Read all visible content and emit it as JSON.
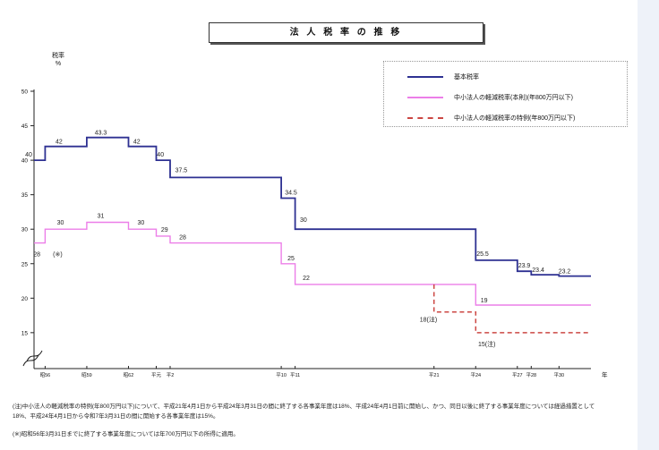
{
  "page": {
    "title": "法 人 税 率 の 推 移"
  },
  "chart_data": {
    "type": "line",
    "subtype": "step-after",
    "title": "法人税率の推移",
    "ylabel": "税率",
    "ylabel_unit": "%",
    "xlabel": "年",
    "grid": false,
    "legend_position": "top-right",
    "y_axis_break": true,
    "ylim": [
      13.5,
      50
    ],
    "yticks": [
      50,
      45,
      40,
      35,
      30,
      25,
      20,
      15
    ],
    "xlim": [
      1980.2,
      2020.3
    ],
    "xticks": [
      {
        "year": 1981,
        "label": "昭56"
      },
      {
        "year": 1984,
        "label": "昭59"
      },
      {
        "year": 1987,
        "label": "昭62"
      },
      {
        "year": 1989,
        "label": "平元"
      },
      {
        "year": 1990,
        "label": "平2"
      },
      {
        "year": 1998,
        "label": "平10"
      },
      {
        "year": 1999,
        "label": "平11"
      },
      {
        "year": 2009,
        "label": "平21"
      },
      {
        "year": 2012,
        "label": "平24"
      },
      {
        "year": 2015,
        "label": "平27"
      },
      {
        "year": 2016,
        "label": "平28"
      },
      {
        "year": 2018,
        "label": "平30"
      }
    ],
    "series": [
      {
        "name": "基本税率",
        "color": "#2e3192",
        "dash": false,
        "width": 1.8,
        "end_year": 2020.3,
        "points": [
          [
            1980.2,
            40
          ],
          [
            1981,
            42
          ],
          [
            1984,
            43.3
          ],
          [
            1987,
            42
          ],
          [
            1989,
            40
          ],
          [
            1990,
            37.5
          ],
          [
            1998,
            34.5
          ],
          [
            1999,
            30
          ],
          [
            2012,
            25.5
          ],
          [
            2015,
            23.9
          ],
          [
            2016,
            23.4
          ],
          [
            2018,
            23.2
          ]
        ],
        "labels": [
          {
            "t": "40",
            "year": 1980.2,
            "v": 40,
            "dx": -6,
            "dy": -4
          },
          {
            "t": "42",
            "year": 1982.0,
            "v": 42,
            "dy": -3
          },
          {
            "t": "43.3",
            "year": 1985.0,
            "v": 43.3,
            "dy": -3
          },
          {
            "t": "42",
            "year": 1987.6,
            "v": 42,
            "dy": -3
          },
          {
            "t": "40",
            "year": 1989.3,
            "v": 40,
            "dy": -4
          },
          {
            "t": "37.5",
            "year": 1990.8,
            "v": 37.5,
            "dy": -6
          },
          {
            "t": "34.5",
            "year": 1998.7,
            "v": 34.5,
            "dy": -4
          },
          {
            "t": "30",
            "year": 1999.6,
            "v": 30,
            "dy": -8
          },
          {
            "t": "25.5",
            "year": 2012.5,
            "v": 25.5,
            "dy": -5
          },
          {
            "t": "23.9",
            "year": 2015.5,
            "v": 23.9,
            "dy": -4
          },
          {
            "t": "23.4",
            "year": 2016.5,
            "v": 23.4,
            "dy": -3
          },
          {
            "t": "23.2",
            "year": 2018.4,
            "v": 23.2,
            "dy": -3
          }
        ]
      },
      {
        "name": "中小法人の軽減税率(本則)(年800万円以下)",
        "color": "#ec7ee8",
        "dash": false,
        "width": 1.4,
        "end_year": 2020.3,
        "points": [
          [
            1980.2,
            28
          ],
          [
            1981,
            30
          ],
          [
            1984,
            31
          ],
          [
            1987,
            30
          ],
          [
            1989,
            29
          ],
          [
            1990,
            28
          ],
          [
            1998,
            25
          ],
          [
            1999,
            22
          ],
          [
            2012,
            19
          ]
        ],
        "labels": [
          {
            "t": "28",
            "year": 1980.4,
            "v": 28,
            "dy": 15
          },
          {
            "t": "(※)",
            "year": 1981.9,
            "v": 28,
            "dy": 15
          },
          {
            "t": "30",
            "year": 1982.1,
            "v": 30,
            "dy": -5
          },
          {
            "t": "31",
            "year": 1985.0,
            "v": 31,
            "dy": -5
          },
          {
            "t": "30",
            "year": 1987.9,
            "v": 30,
            "dy": -5
          },
          {
            "t": "29",
            "year": 1989.6,
            "v": 29,
            "dy": -5
          },
          {
            "t": "28",
            "year": 1990.9,
            "v": 28,
            "dy": -4
          },
          {
            "t": "25",
            "year": 1998.7,
            "v": 25,
            "dy": -4
          },
          {
            "t": "22",
            "year": 1999.8,
            "v": 22,
            "dy": -5
          },
          {
            "t": "19",
            "year": 2012.6,
            "v": 19,
            "dy": -3
          }
        ]
      },
      {
        "name": "中小法人の軽減税率の特例(年800万円以下)",
        "color": "#cc4743",
        "dash": true,
        "width": 1.5,
        "end_year": 2020.3,
        "points": [
          [
            2009,
            22
          ],
          [
            2009,
            18
          ],
          [
            2012,
            15
          ]
        ],
        "labels": [
          {
            "t": "18(注)",
            "year": 2008.6,
            "v": 18,
            "dy": 11
          },
          {
            "t": "15(注)",
            "year": 2012.8,
            "v": 15,
            "dy": 15
          }
        ]
      }
    ]
  },
  "footnotes": {
    "note1": "(注)中小法人の軽減税率の特例(年800万円以下)について、平成21年4月1日から平成24年3月31日の間に終了する各事業年度は18%、平成24年4月1日前に開始し、かつ、同日以後に終了する事業年度については経過措置として",
    "note2": "18%、平成24年4月1日から令和7年3月31日の間に開始する各事業年度は15%。",
    "note3": "(※)昭和56年3月31日までに終了する事業年度については年700万円以下の所得に適用。"
  }
}
